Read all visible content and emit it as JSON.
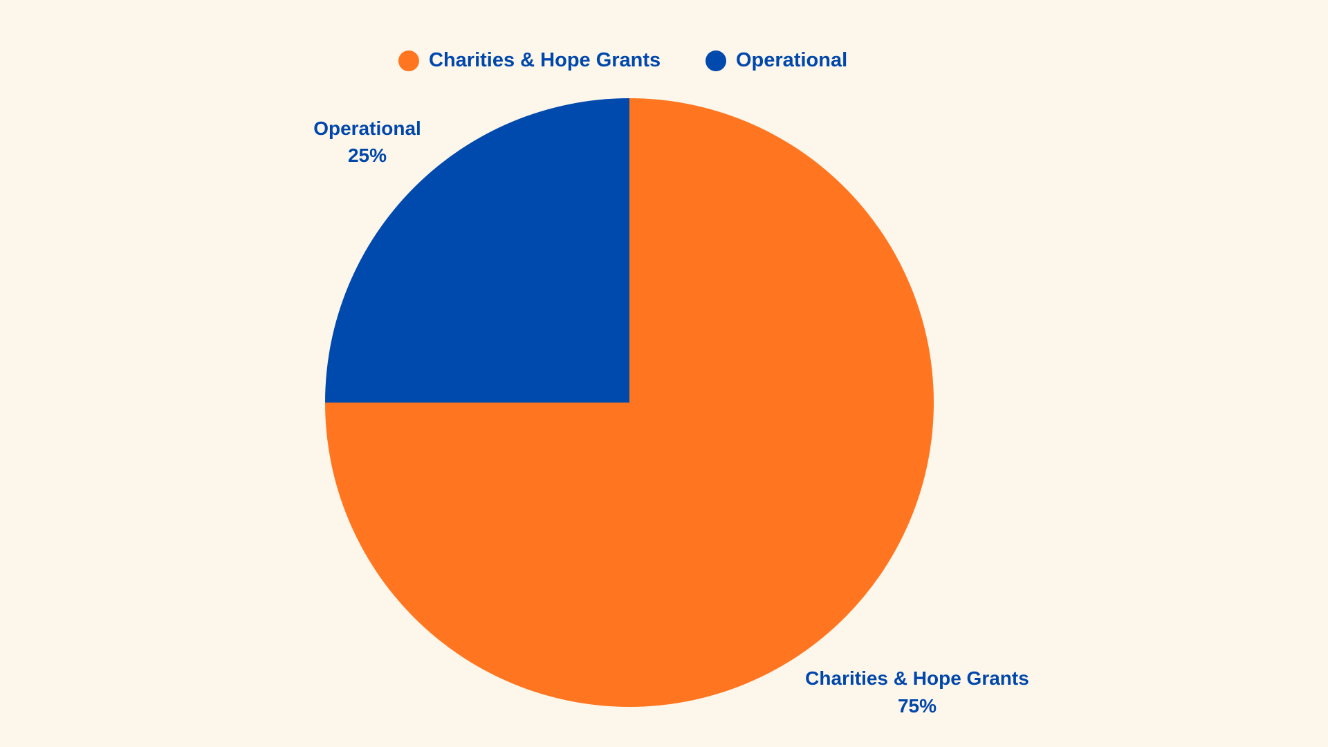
{
  "chart_data": {
    "type": "pie",
    "title": "",
    "legend_position": "top-center",
    "label_color": "#0047ab",
    "background": "#fdf6ea",
    "slices": [
      {
        "name": "Charities & Hope Grants",
        "value": 75,
        "percent_label": "75%",
        "color": "#ff7520"
      },
      {
        "name": "Operational",
        "value": 25,
        "percent_label": "25%",
        "color": "#0049ad"
      }
    ]
  }
}
